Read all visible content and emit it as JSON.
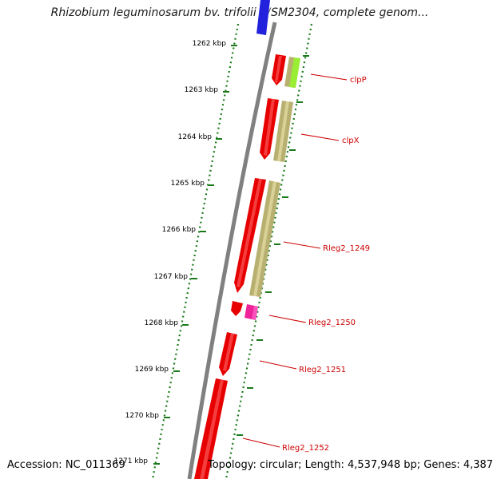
{
  "title": "Rhizobium leguminosarum bv. trifolii WSM2304, complete genom...",
  "footer": {
    "accession": "Accession: NC_011369",
    "topology": "Topology: circular; Length: 4,537,948 bp; Genes: 4,387"
  },
  "colors": {
    "backbone": "#808080",
    "forward_strand": "#e60000",
    "reverse_strand_product": "#b8b070",
    "clpP_partner": "#99ee33",
    "Rleg2_1250_partner": "#ee2299",
    "top_gene": "#2222dd",
    "ticks": "#1a7a1a",
    "label_text": "#cc0000"
  },
  "ruler": {
    "unit": "kbp",
    "ticks": [
      {
        "label": "1262 kbp"
      },
      {
        "label": "1263 kbp"
      },
      {
        "label": "1264 kbp"
      },
      {
        "label": "1265 kbp"
      },
      {
        "label": "1266 kbp"
      },
      {
        "label": "1267 kbp"
      },
      {
        "label": "1268 kbp"
      },
      {
        "label": "1269 kbp"
      },
      {
        "label": "1270 kbp"
      },
      {
        "label": "1271 kbp"
      }
    ]
  },
  "gene_labels": [
    {
      "name": "clpP"
    },
    {
      "name": "clpX"
    },
    {
      "name": "Rleg2_1249"
    },
    {
      "name": "Rleg2_1250"
    },
    {
      "name": "Rleg2_1251"
    },
    {
      "name": "Rleg2_1252"
    }
  ]
}
